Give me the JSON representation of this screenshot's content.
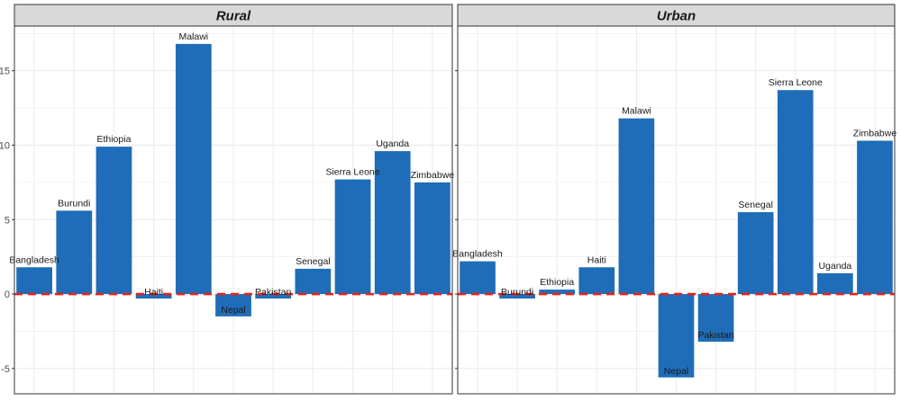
{
  "chart_data": [
    {
      "type": "bar",
      "title": "Rural",
      "categories": [
        "Bangladesh",
        "Burundi",
        "Ethiopia",
        "Haiti",
        "Malawi",
        "Nepal",
        "Pakistan",
        "Senegal",
        "Sierra Leone",
        "Uganda",
        "Zimbabwe"
      ],
      "values": [
        1.8,
        5.6,
        9.9,
        -0.3,
        16.8,
        -1.5,
        -0.3,
        1.7,
        7.7,
        9.6,
        7.5
      ],
      "ylim": [
        -6.7,
        18.0
      ],
      "yticks": [
        -5,
        0,
        5,
        10,
        15
      ],
      "xlabel": "",
      "ylabel": "",
      "reference_line": 0,
      "grid": true
    },
    {
      "type": "bar",
      "title": "Urban",
      "categories": [
        "Bangladesh",
        "Burundi",
        "Ethiopia",
        "Haiti",
        "Malawi",
        "Nepal",
        "Pakistan",
        "Senegal",
        "Sierra Leone",
        "Uganda",
        "Zimbabwe"
      ],
      "values": [
        2.2,
        -0.3,
        0.3,
        1.8,
        11.8,
        -5.6,
        -3.2,
        5.5,
        13.7,
        1.4,
        10.3
      ],
      "ylim": [
        -6.7,
        18.0
      ],
      "yticks": [
        -5,
        0,
        5,
        10,
        15
      ],
      "xlabel": "",
      "ylabel": "",
      "reference_line": 0,
      "grid": true
    }
  ],
  "colors": {
    "bar": "#1f6db8",
    "reference_line": "#e8221c",
    "strip_background": "#d9d9d9",
    "grid": "#ebebeb",
    "panel_border": "#333333"
  }
}
